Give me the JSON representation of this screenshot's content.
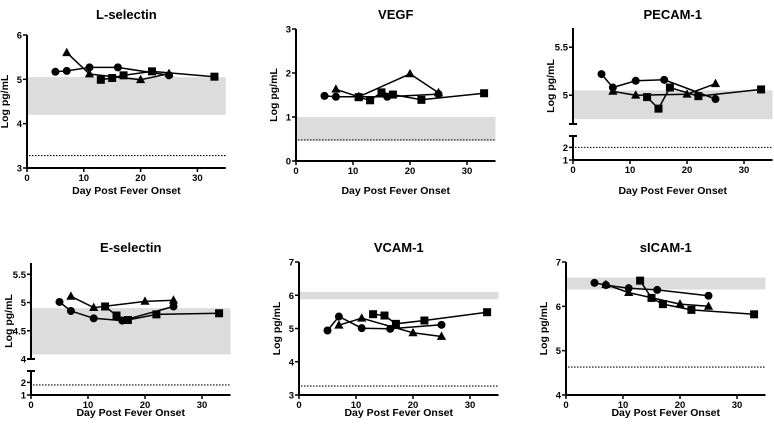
{
  "chart_data": [
    {
      "type": "line",
      "title": "L-selectin",
      "xlabel": "Day Post Fever Onset",
      "ylabel": "Log pg/mL",
      "xlim": [
        0,
        35
      ],
      "xticks": [
        0,
        10,
        20,
        30
      ],
      "ylim": [
        3,
        6
      ],
      "yticks": [
        "3",
        "4",
        "5",
        "6"
      ],
      "yticks_values": [
        3,
        4,
        5,
        6
      ],
      "normal_range": [
        4.2,
        5.05
      ],
      "detection_limit": 3.28,
      "axis_break": null,
      "series": [
        {
          "name": "circle",
          "marker": "circle",
          "x": [
            5,
            7,
            11,
            16,
            25
          ],
          "y": [
            5.17,
            5.19,
            5.27,
            5.27,
            5.09
          ]
        },
        {
          "name": "triangle",
          "marker": "triangle",
          "x": [
            7,
            11,
            20,
            25
          ],
          "y": [
            5.6,
            5.12,
            4.99,
            5.13
          ]
        },
        {
          "name": "square",
          "marker": "square",
          "x": [
            13,
            15,
            17,
            22,
            33
          ],
          "y": [
            4.99,
            5.03,
            5.09,
            5.18,
            5.06
          ]
        }
      ]
    },
    {
      "type": "line",
      "title": "VEGF",
      "xlabel": "Day Post Fever Onset",
      "ylabel": "Log pg/mL",
      "xlim": [
        0,
        35
      ],
      "xticks": [
        0,
        10,
        20,
        30
      ],
      "ylim": [
        0,
        3
      ],
      "yticks": [
        "0",
        "1",
        "2",
        "3"
      ],
      "yticks_values": [
        0,
        1,
        2,
        3
      ],
      "normal_range": [
        0.45,
        1.0
      ],
      "detection_limit": 0.48,
      "axis_break": null,
      "series": [
        {
          "name": "circle",
          "marker": "circle",
          "x": [
            5,
            7,
            11,
            16,
            25
          ],
          "y": [
            1.48,
            1.46,
            1.46,
            1.46,
            1.52
          ]
        },
        {
          "name": "triangle",
          "marker": "triangle",
          "x": [
            7,
            11,
            20,
            25
          ],
          "y": [
            1.63,
            1.46,
            1.98,
            1.55
          ]
        },
        {
          "name": "square",
          "marker": "square",
          "x": [
            11,
            13,
            15,
            17,
            22,
            33
          ],
          "y": [
            1.45,
            1.38,
            1.56,
            1.51,
            1.39,
            1.54
          ]
        }
      ]
    },
    {
      "type": "line",
      "title": "PECAM-1",
      "xlabel": "Day Post Fever Onset",
      "ylabel": "Log pg/mL",
      "xlim": [
        0,
        35
      ],
      "xticks": [
        0,
        10,
        20,
        30
      ],
      "ylim": [
        1,
        5.7
      ],
      "yticks": [
        "1",
        "2",
        "5",
        "5.5"
      ],
      "yticks_values": [
        1,
        2,
        5,
        5.5
      ],
      "normal_range": [
        4.75,
        5.05
      ],
      "detection_limit": 2.0,
      "axis_break": {
        "lower": [
          1,
          2.9
        ],
        "upper": [
          4.7,
          5.7
        ]
      },
      "series": [
        {
          "name": "circle",
          "marker": "circle",
          "x": [
            5,
            7,
            11,
            16,
            25
          ],
          "y": [
            5.22,
            5.08,
            5.15,
            5.16,
            4.96
          ]
        },
        {
          "name": "triangle",
          "marker": "triangle",
          "x": [
            7,
            11,
            20,
            25
          ],
          "y": [
            5.04,
            5.0,
            5.01,
            5.12
          ]
        },
        {
          "name": "square",
          "marker": "square",
          "x": [
            13,
            15,
            17,
            22,
            33
          ],
          "y": [
            4.98,
            4.86,
            5.08,
            4.99,
            5.06
          ]
        }
      ]
    },
    {
      "type": "line",
      "title": "E-selectin",
      "xlabel": "Day Post Fever Onset",
      "ylabel": "Log pg/mL",
      "xlim": [
        0,
        35
      ],
      "xticks": [
        0,
        10,
        20,
        30
      ],
      "ylim": [
        1,
        5.7
      ],
      "yticks": [
        "1",
        "2",
        "4",
        "4.5",
        "5",
        "5.5"
      ],
      "yticks_values": [
        1,
        2,
        4,
        4.5,
        5,
        5.5
      ],
      "normal_range": [
        4.08,
        4.9
      ],
      "detection_limit": 1.8,
      "axis_break": {
        "lower": [
          1,
          2.9
        ],
        "upper": [
          4,
          5.7
        ]
      },
      "series": [
        {
          "name": "circle",
          "marker": "circle",
          "x": [
            5,
            7,
            11,
            16,
            25
          ],
          "y": [
            5.01,
            4.85,
            4.72,
            4.68,
            4.93
          ]
        },
        {
          "name": "triangle",
          "marker": "triangle",
          "x": [
            7,
            11,
            20,
            25
          ],
          "y": [
            5.11,
            4.91,
            5.02,
            5.04
          ]
        },
        {
          "name": "square",
          "marker": "square",
          "x": [
            13,
            15,
            17,
            22,
            33
          ],
          "y": [
            4.93,
            4.77,
            4.69,
            4.79,
            4.81
          ]
        }
      ]
    },
    {
      "type": "line",
      "title": "VCAM-1",
      "xlabel": "Day Post Fever Onset",
      "ylabel": "Log pg/mL",
      "xlim": [
        0,
        35
      ],
      "xticks": [
        0,
        10,
        20,
        30
      ],
      "ylim": [
        3,
        7
      ],
      "yticks": [
        "3",
        "4",
        "5",
        "6",
        "7"
      ],
      "yticks_values": [
        3,
        4,
        5,
        6,
        7
      ],
      "normal_range": [
        5.88,
        6.1
      ],
      "detection_limit": 3.27,
      "axis_break": null,
      "series": [
        {
          "name": "circle",
          "marker": "circle",
          "x": [
            5,
            7,
            11,
            16,
            25
          ],
          "y": [
            4.94,
            5.36,
            5.01,
            4.99,
            5.11
          ]
        },
        {
          "name": "triangle",
          "marker": "triangle",
          "x": [
            7,
            11,
            20,
            25
          ],
          "y": [
            5.1,
            5.31,
            4.87,
            4.76
          ]
        },
        {
          "name": "square",
          "marker": "square",
          "x": [
            13,
            15,
            17,
            22,
            33
          ],
          "y": [
            5.43,
            5.39,
            5.14,
            5.24,
            5.49
          ]
        }
      ]
    },
    {
      "type": "line",
      "title": "sICAM-1",
      "xlabel": "Day Post Fever Onset",
      "ylabel": "Log pg/mL",
      "xlim": [
        0,
        35
      ],
      "xticks": [
        0,
        10,
        20,
        30
      ],
      "ylim": [
        4,
        7
      ],
      "yticks": [
        "4",
        "5",
        "6",
        "7"
      ],
      "yticks_values": [
        4,
        5,
        6,
        7
      ],
      "normal_range": [
        6.38,
        6.65
      ],
      "detection_limit": 4.63,
      "axis_break": null,
      "series": [
        {
          "name": "circle",
          "marker": "circle",
          "x": [
            5,
            7,
            11,
            16,
            25
          ],
          "y": [
            6.53,
            6.48,
            6.41,
            6.37,
            6.24
          ]
        },
        {
          "name": "triangle",
          "marker": "triangle",
          "x": [
            7,
            11,
            20,
            25
          ],
          "y": [
            6.49,
            6.31,
            6.05,
            6.0
          ]
        },
        {
          "name": "square",
          "marker": "square",
          "x": [
            13,
            15,
            17,
            22,
            33
          ],
          "y": [
            6.58,
            6.19,
            6.05,
            5.92,
            5.82
          ]
        }
      ]
    }
  ]
}
